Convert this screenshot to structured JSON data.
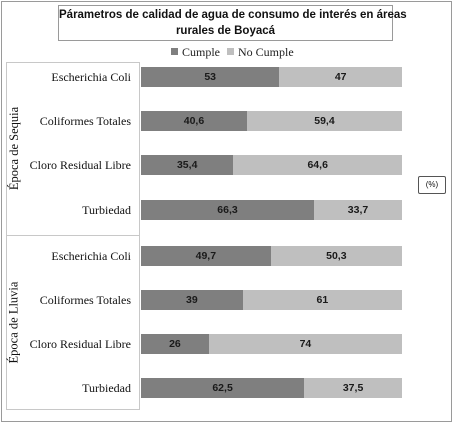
{
  "chart_data": {
    "type": "bar",
    "orientation": "horizontal",
    "stacked": true,
    "title_lines": [
      "Párametros de calidad de agua de consumo de interés en áreas",
      "rurales de Boyacá"
    ],
    "unit": "(%)",
    "xlim": [
      0,
      100
    ],
    "legend_position": "top",
    "groups": [
      {
        "label": "Época de Sequia",
        "categories": [
          "Escherichia Coli",
          "Coliformes Totales",
          "Cloro Residual Libre",
          "Turbiedad"
        ]
      },
      {
        "label": "Época de Lluvia",
        "categories": [
          "Escherichia Coli",
          "Coliformes Totales",
          "Cloro Residual Libre",
          "Turbiedad"
        ]
      }
    ],
    "categories": [
      "Escherichia Coli",
      "Coliformes Totales",
      "Cloro Residual Libre",
      "Turbiedad",
      "Escherichia Coli",
      "Coliformes Totales",
      "Cloro Residual Libre",
      "Turbiedad"
    ],
    "series": [
      {
        "name": "Cumple",
        "color": "#7f7f7f",
        "values": [
          53,
          40.6,
          35.4,
          66.3,
          49.7,
          39,
          26,
          62.5
        ],
        "labels": [
          "53",
          "40,6",
          "35,4",
          "66,3",
          "49,7",
          "39",
          "26",
          "62,5"
        ]
      },
      {
        "name": "No Cumple",
        "color": "#bfbfbf",
        "values": [
          47,
          59.4,
          64.6,
          33.7,
          50.3,
          61,
          74,
          37.5
        ],
        "labels": [
          "47",
          "59,4",
          "64,6",
          "33,7",
          "50,3",
          "61",
          "74",
          "37,5"
        ]
      }
    ]
  }
}
